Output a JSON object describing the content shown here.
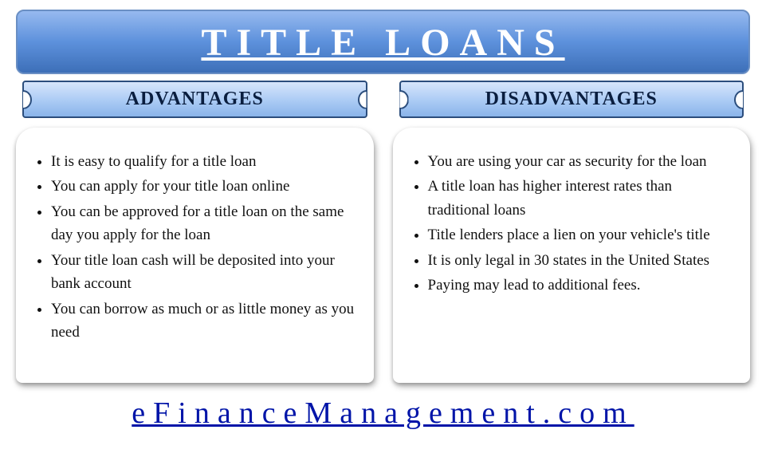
{
  "title": "TITLE LOANS",
  "colors": {
    "banner_gradient_top": "#96b9ef",
    "banner_gradient_mid": "#5d91dc",
    "banner_gradient_bottom": "#3d6fb8",
    "banner_border": "#6a8fc4",
    "banner_text": "#ffffff",
    "subheader_gradient_top": "#d7e5fb",
    "subheader_gradient_mid": "#aecdf5",
    "subheader_gradient_bottom": "#8ab4ea",
    "subheader_border": "#2b4d7c",
    "subheader_text": "#0a1e3f",
    "body_text": "#111111",
    "footer_text": "#0014a8",
    "background": "#ffffff"
  },
  "typography": {
    "title_fontsize": 48,
    "title_letterspacing": 12,
    "subheader_fontsize": 24,
    "body_fontsize": 19,
    "footer_fontsize": 38,
    "footer_letterspacing": 10,
    "font_family": "Georgia / Times New Roman serif"
  },
  "columns": {
    "left": {
      "header": "ADVANTAGES",
      "items": [
        "It is easy to qualify for a title loan",
        "You can apply for your title loan online",
        "You can be approved for a title loan on the same day you apply for the loan",
        "Your title loan cash will be deposited into your bank account",
        "You can borrow as much or as little money as you need"
      ]
    },
    "right": {
      "header": "DISADVANTAGES",
      "items": [
        "You are using your car as security for the loan",
        "A title loan has higher interest rates than traditional loans",
        "Title lenders place a lien on your vehicle's title",
        "It is only legal in 30 states in the United States",
        "Paying may lead to additional fees."
      ]
    }
  },
  "footer": "eFinanceManagement.com"
}
